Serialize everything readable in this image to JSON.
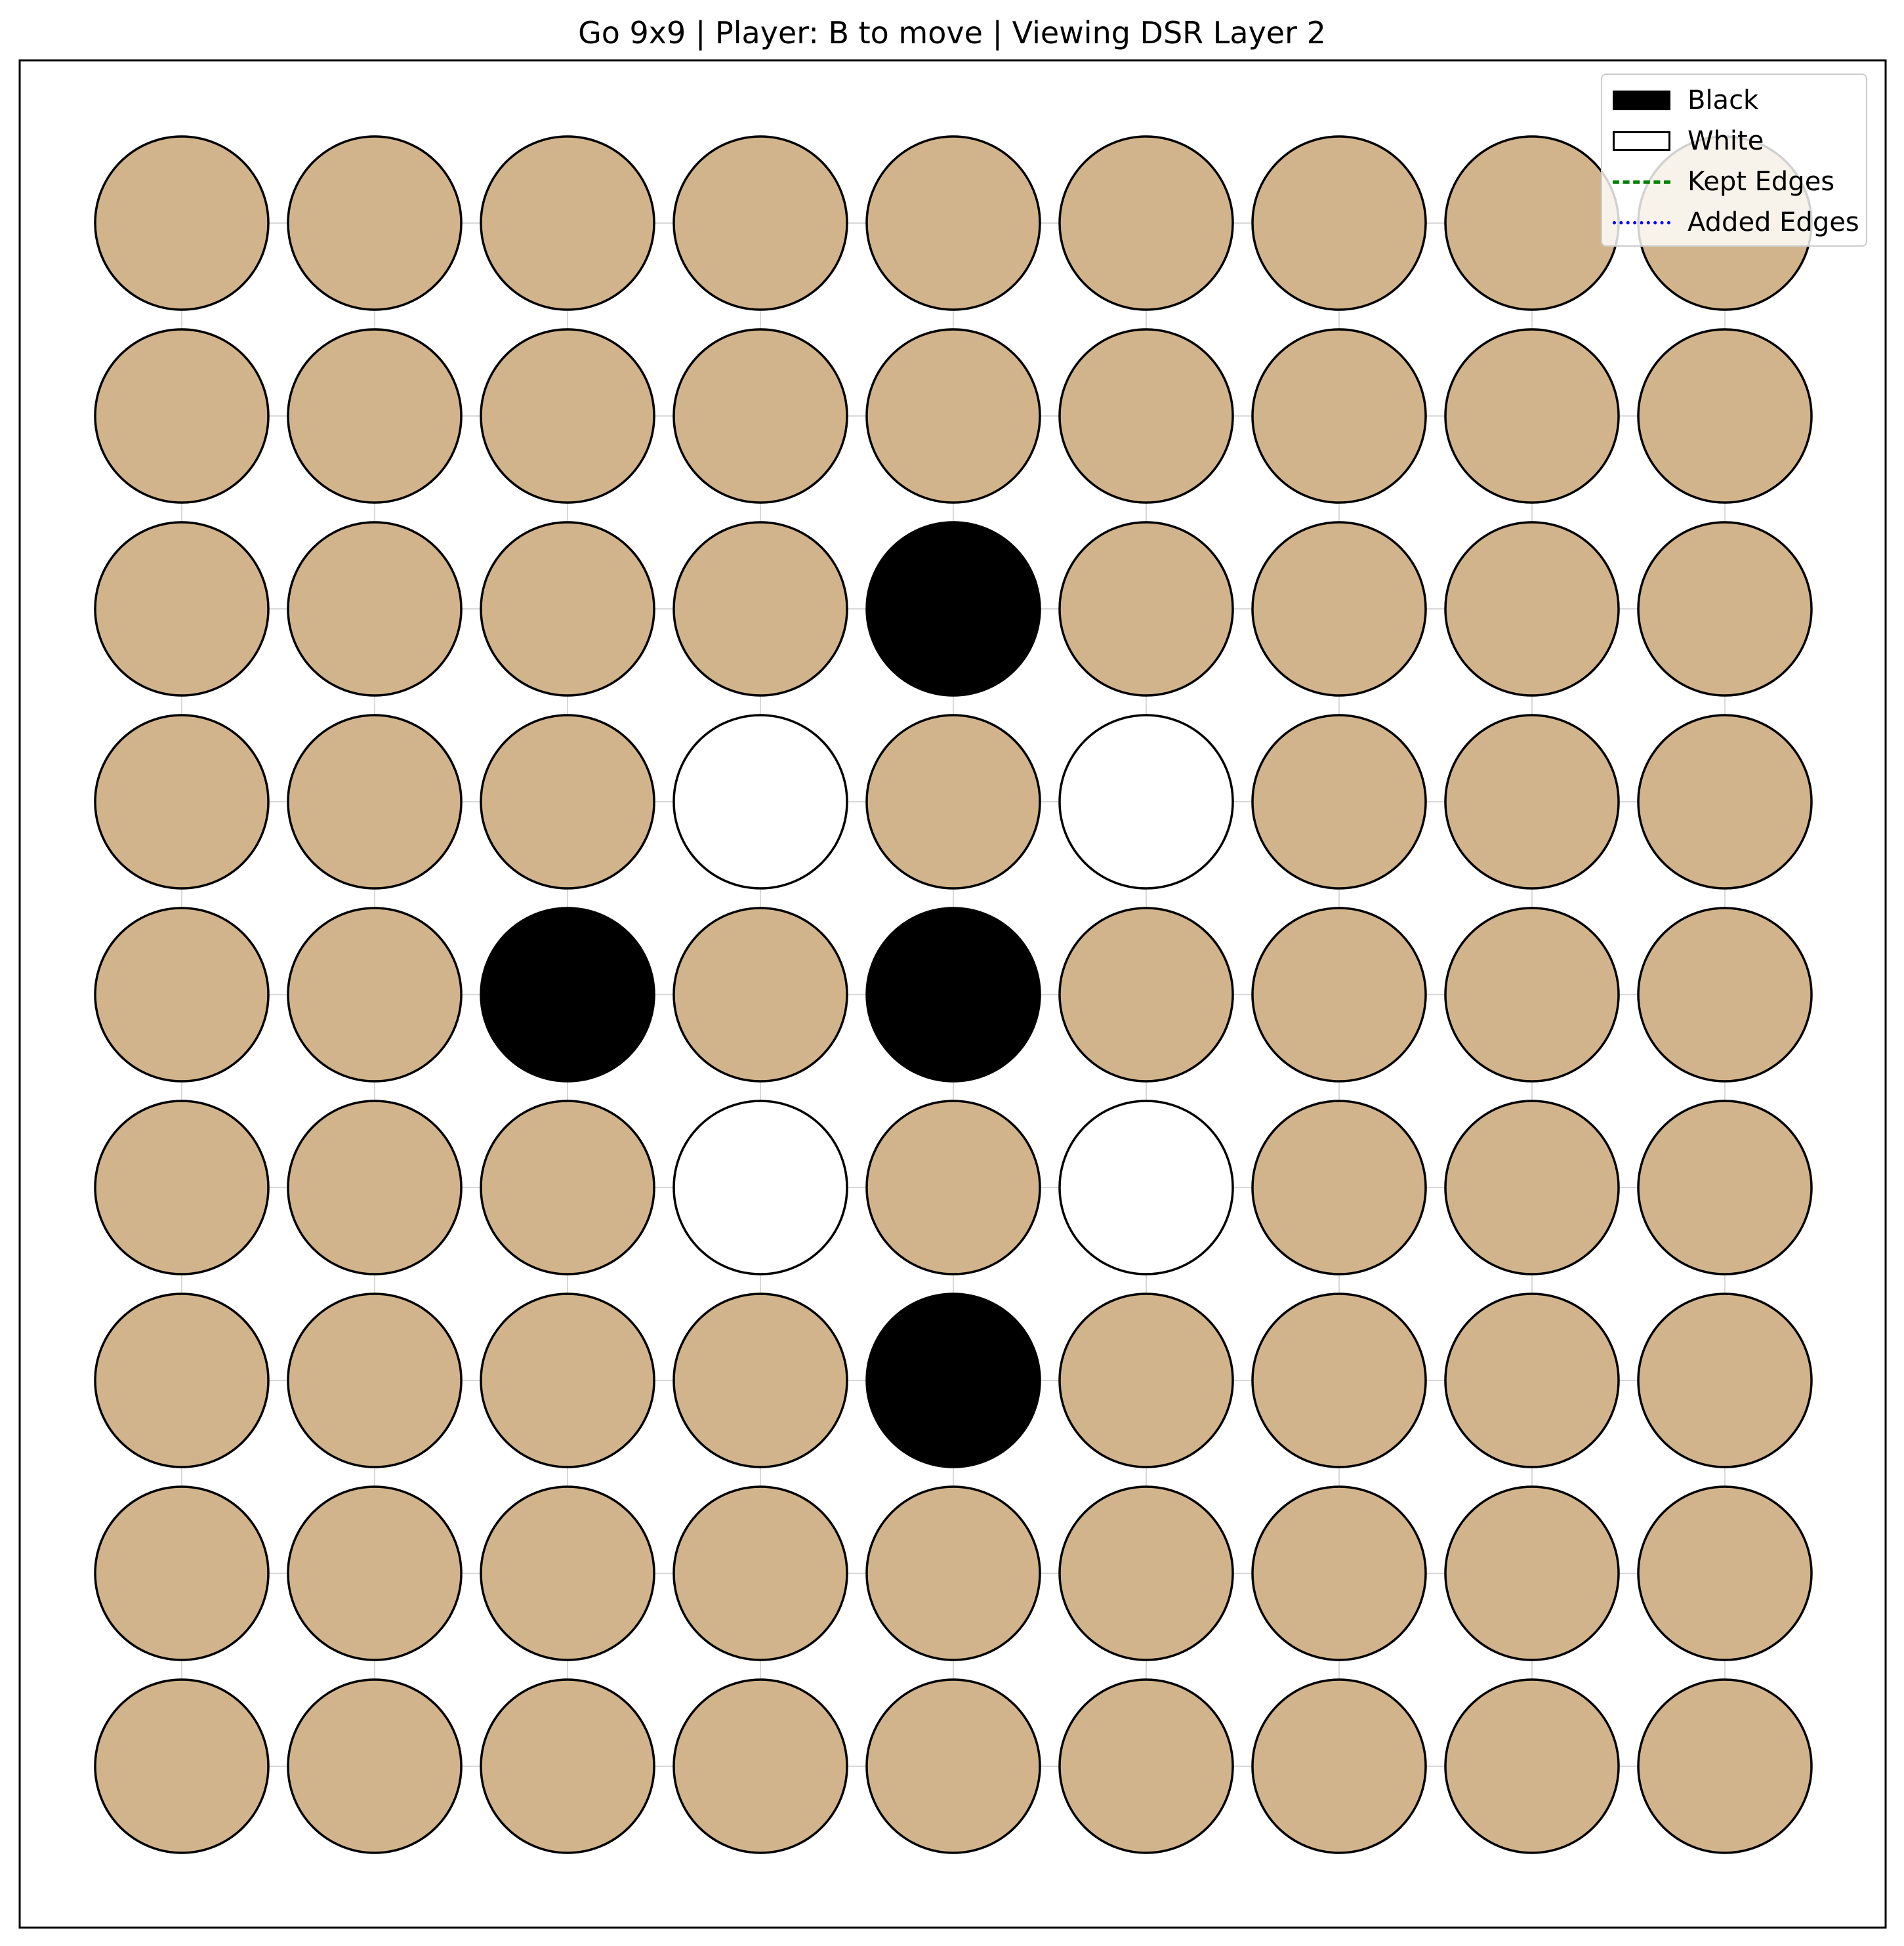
{
  "title": "Go 9x9 | Player: B to move | Viewing DSR Layer 2",
  "board": {
    "size": 9,
    "empty_color": "#d2b48c",
    "black_color": "#000000",
    "white_color": "#ffffff",
    "rows": [
      "---------",
      "---------",
      "----B----",
      "---W-W---",
      "--B-B----",
      "---W-W---",
      "----B----",
      "---------",
      "---------"
    ]
  },
  "legend": {
    "placement": "top-right",
    "items": [
      {
        "label": "Black",
        "kind": "fill",
        "fill": "#000000"
      },
      {
        "label": "White",
        "kind": "fill",
        "fill": "#ffffff"
      },
      {
        "label": "Kept Edges",
        "kind": "line",
        "color": "#008000",
        "style": "dashed"
      },
      {
        "label": "Added Edges",
        "kind": "line",
        "color": "#0000ff",
        "style": "dotted"
      }
    ]
  }
}
